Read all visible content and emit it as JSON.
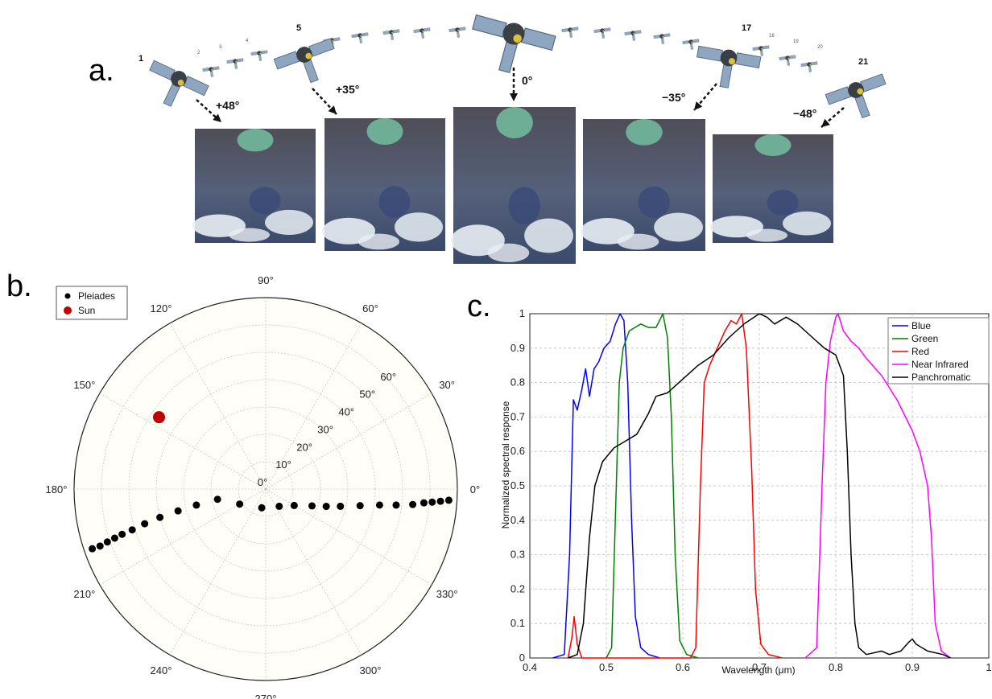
{
  "panels": {
    "a": "a.",
    "b": "b.",
    "c": "c."
  },
  "acquisition": {
    "satellite_numbers": [
      "1",
      "5",
      "17",
      "21"
    ],
    "intermediate_numbers": [
      "2",
      "3",
      "4",
      "18",
      "19",
      "20"
    ],
    "angles": [
      "+48°",
      "+35°",
      "0°",
      "−35°",
      "−48°"
    ],
    "icon": "satellite-icon",
    "image_colors": {
      "land": "#5a5a66",
      "water": "#6fae96",
      "cloud": "#e8eef4",
      "lake": "#3a4a78"
    }
  },
  "chart_data": [
    {
      "type": "scatter",
      "projection": "polar",
      "legend": [
        "Pleiades",
        "Sun"
      ],
      "legend_position": "top-left",
      "angle_ticks": [
        "0°",
        "30°",
        "60°",
        "90°",
        "120°",
        "150°",
        "180°",
        "210°",
        "240°",
        "270°",
        "300°",
        "330°"
      ],
      "radial_ticks": [
        "0°",
        "10°",
        "20°",
        "30°",
        "40°",
        "50°",
        "60°"
      ],
      "rlim": [
        0,
        70
      ],
      "grid": true,
      "series": [
        {
          "name": "Pleiades",
          "color": "#000000",
          "points": [
            {
              "theta": 199,
              "r": 67
            },
            {
              "theta": 199,
              "r": 64
            },
            {
              "theta": 198.5,
              "r": 61
            },
            {
              "theta": 198,
              "r": 58
            },
            {
              "theta": 197.5,
              "r": 55
            },
            {
              "theta": 197,
              "r": 51
            },
            {
              "theta": 196,
              "r": 46
            },
            {
              "theta": 195,
              "r": 40
            },
            {
              "theta": 194,
              "r": 33
            },
            {
              "theta": 193,
              "r": 26
            },
            {
              "theta": 192,
              "r": 18
            },
            {
              "theta": 210,
              "r": 11
            },
            {
              "theta": 258,
              "r": 7
            },
            {
              "theta": 308,
              "r": 8
            },
            {
              "theta": 330,
              "r": 12
            },
            {
              "theta": 340,
              "r": 18
            },
            {
              "theta": 344,
              "r": 23
            },
            {
              "theta": 347,
              "r": 28
            },
            {
              "theta": 350,
              "r": 35
            },
            {
              "theta": 352,
              "r": 42
            },
            {
              "theta": 353,
              "r": 48
            },
            {
              "theta": 354,
              "r": 54
            },
            {
              "theta": 355,
              "r": 58
            },
            {
              "theta": 355.5,
              "r": 61
            },
            {
              "theta": 356,
              "r": 64
            },
            {
              "theta": 356.5,
              "r": 67
            }
          ]
        },
        {
          "name": "Sun",
          "color": "#c00000",
          "points": [
            {
              "theta": 146,
              "r": 47
            }
          ]
        }
      ]
    },
    {
      "type": "line",
      "xlabel": "Wavelength (μm)",
      "ylabel": "Normalized spectral response",
      "xlim": [
        0.4,
        1.0
      ],
      "ylim": [
        0,
        1
      ],
      "x_ticks": [
        "0.4",
        "0.5",
        "0.6",
        "0.7",
        "0.8",
        "0.9",
        "1"
      ],
      "y_ticks": [
        "0",
        "0.1",
        "0.2",
        "0.3",
        "0.4",
        "0.5",
        "0.6",
        "0.7",
        "0.8",
        "0.9",
        "1"
      ],
      "grid": true,
      "legend_position": "top-right",
      "series": [
        {
          "name": "Blue",
          "color": "#0000ff",
          "points": [
            [
              0.43,
              0
            ],
            [
              0.445,
              0.01
            ],
            [
              0.452,
              0.3
            ],
            [
              0.457,
              0.75
            ],
            [
              0.462,
              0.72
            ],
            [
              0.468,
              0.78
            ],
            [
              0.473,
              0.84
            ],
            [
              0.478,
              0.76
            ],
            [
              0.484,
              0.84
            ],
            [
              0.49,
              0.86
            ],
            [
              0.497,
              0.9
            ],
            [
              0.505,
              0.92
            ],
            [
              0.512,
              0.97
            ],
            [
              0.518,
              1.0
            ],
            [
              0.523,
              0.98
            ],
            [
              0.528,
              0.8
            ],
            [
              0.533,
              0.4
            ],
            [
              0.538,
              0.12
            ],
            [
              0.545,
              0.03
            ],
            [
              0.555,
              0.01
            ],
            [
              0.57,
              0
            ]
          ]
        },
        {
          "name": "Green",
          "color": "#008000",
          "points": [
            [
              0.5,
              0
            ],
            [
              0.507,
              0.03
            ],
            [
              0.513,
              0.5
            ],
            [
              0.517,
              0.8
            ],
            [
              0.522,
              0.9
            ],
            [
              0.53,
              0.95
            ],
            [
              0.545,
              0.97
            ],
            [
              0.555,
              0.96
            ],
            [
              0.565,
              0.96
            ],
            [
              0.574,
              1.0
            ],
            [
              0.58,
              0.93
            ],
            [
              0.585,
              0.7
            ],
            [
              0.59,
              0.3
            ],
            [
              0.596,
              0.05
            ],
            [
              0.605,
              0.01
            ],
            [
              0.62,
              0
            ]
          ]
        },
        {
          "name": "Red",
          "color": "#ff0000",
          "points": [
            [
              0.45,
              0
            ],
            [
              0.455,
              0.06
            ],
            [
              0.458,
              0.12
            ],
            [
              0.462,
              0.04
            ],
            [
              0.468,
              0
            ],
            [
              0.61,
              0
            ],
            [
              0.617,
              0.03
            ],
            [
              0.623,
              0.5
            ],
            [
              0.628,
              0.8
            ],
            [
              0.635,
              0.85
            ],
            [
              0.645,
              0.9
            ],
            [
              0.655,
              0.95
            ],
            [
              0.663,
              0.98
            ],
            [
              0.67,
              0.97
            ],
            [
              0.677,
              1.0
            ],
            [
              0.683,
              0.9
            ],
            [
              0.69,
              0.55
            ],
            [
              0.695,
              0.2
            ],
            [
              0.702,
              0.04
            ],
            [
              0.712,
              0.01
            ],
            [
              0.73,
              0
            ]
          ]
        },
        {
          "name": "Near Infrared",
          "color": "#ff00ff",
          "points": [
            [
              0.76,
              0
            ],
            [
              0.775,
              0.03
            ],
            [
              0.782,
              0.5
            ],
            [
              0.787,
              0.8
            ],
            [
              0.793,
              0.92
            ],
            [
              0.8,
              0.99
            ],
            [
              0.803,
              1.0
            ],
            [
              0.81,
              0.95
            ],
            [
              0.82,
              0.92
            ],
            [
              0.83,
              0.9
            ],
            [
              0.84,
              0.87
            ],
            [
              0.86,
              0.82
            ],
            [
              0.88,
              0.75
            ],
            [
              0.9,
              0.66
            ],
            [
              0.91,
              0.6
            ],
            [
              0.92,
              0.5
            ],
            [
              0.925,
              0.35
            ],
            [
              0.93,
              0.1
            ],
            [
              0.938,
              0.02
            ],
            [
              0.95,
              0
            ]
          ]
        },
        {
          "name": "Panchromatic",
          "color": "#000000",
          "points": [
            [
              0.45,
              0
            ],
            [
              0.462,
              0.01
            ],
            [
              0.47,
              0.1
            ],
            [
              0.478,
              0.35
            ],
            [
              0.485,
              0.5
            ],
            [
              0.495,
              0.57
            ],
            [
              0.51,
              0.61
            ],
            [
              0.525,
              0.63
            ],
            [
              0.54,
              0.65
            ],
            [
              0.555,
              0.71
            ],
            [
              0.565,
              0.76
            ],
            [
              0.58,
              0.77
            ],
            [
              0.6,
              0.81
            ],
            [
              0.62,
              0.85
            ],
            [
              0.64,
              0.88
            ],
            [
              0.66,
              0.93
            ],
            [
              0.68,
              0.97
            ],
            [
              0.7,
              1.0
            ],
            [
              0.71,
              0.99
            ],
            [
              0.72,
              0.97
            ],
            [
              0.735,
              0.99
            ],
            [
              0.75,
              0.97
            ],
            [
              0.77,
              0.93
            ],
            [
              0.785,
              0.9
            ],
            [
              0.8,
              0.88
            ],
            [
              0.81,
              0.82
            ],
            [
              0.815,
              0.6
            ],
            [
              0.82,
              0.3
            ],
            [
              0.825,
              0.1
            ],
            [
              0.83,
              0.03
            ],
            [
              0.84,
              0.01
            ],
            [
              0.86,
              0.02
            ],
            [
              0.87,
              0.01
            ],
            [
              0.885,
              0.02
            ],
            [
              0.895,
              0.045
            ],
            [
              0.9,
              0.055
            ],
            [
              0.905,
              0.04
            ],
            [
              0.92,
              0.02
            ],
            [
              0.94,
              0.01
            ],
            [
              0.95,
              0
            ]
          ]
        }
      ]
    }
  ]
}
